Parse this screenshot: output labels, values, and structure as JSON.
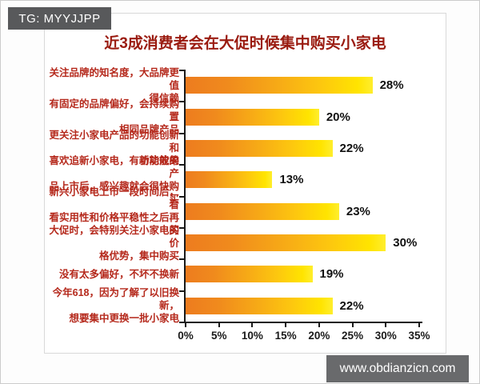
{
  "badge": {
    "text": "TG: MYYJJPP"
  },
  "watermark": {
    "text": "www.obdianzicn.com"
  },
  "chart_data": {
    "type": "bar",
    "orientation": "horizontal",
    "title": "近3成消费者会在大促时候集中购买小家电",
    "categories": [
      "关注品牌的知名度，大品牌更值\n得信赖",
      "有固定的品牌偏好，会持续购置\n相同品牌产品",
      "更关注小家电产品的功能创新和\n功能效果",
      "喜欢追新小家电，有新功能的产\n品上市后，感兴趣就会很快购买",
      "新兴小家电上市一段时间后，看\n看实用性和价格平稳性之后再买",
      "大促时，会特别关注小家电的价\n格优势，集中购买",
      "没有太多偏好，不坏不换新",
      "今年618，因为了解了以旧换新，\n想要集中更换一批小家电"
    ],
    "values": [
      28,
      20,
      22,
      13,
      23,
      30,
      19,
      22
    ],
    "value_labels": [
      "28%",
      "20%",
      "22%",
      "13%",
      "23%",
      "30%",
      "19%",
      "22%"
    ],
    "x_ticks": [
      "0%",
      "5%",
      "10%",
      "15%",
      "20%",
      "25%",
      "30%",
      "35%"
    ],
    "xlim": [
      0,
      35
    ],
    "grid": false,
    "legend": "none",
    "bar_gradient": [
      "#ed7c1f",
      "#ffee2e"
    ],
    "title_color": "#9a1b10",
    "category_label_color": "#b5291c",
    "value_label_color": "#111111",
    "axis_color": "#1a1a1a"
  }
}
